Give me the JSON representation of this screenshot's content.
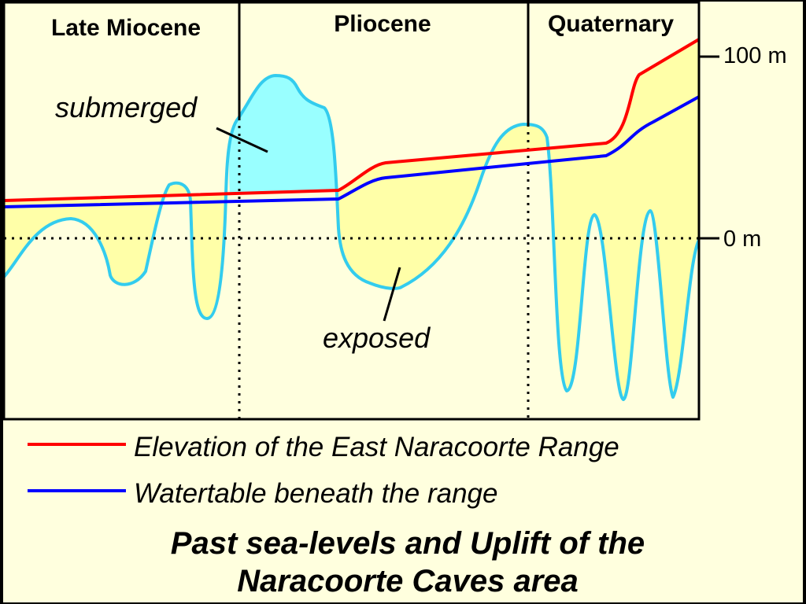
{
  "colors": {
    "background": "#ffffde",
    "exposed_fill": "#ffffa8",
    "submerged_fill": "#99ffff",
    "sea_level_curve": "#33ccee",
    "elevation_line": "#ff0000",
    "watertable_line": "#0000ff",
    "frame": "#000000"
  },
  "diagram": {
    "epochs": [
      "Late Miocene",
      "Pliocene",
      "Quaternary"
    ],
    "axis": {
      "upper_label": "100 m",
      "zero_label": "0 m"
    },
    "annotations": {
      "submerged": "submerged",
      "exposed": "exposed"
    }
  },
  "legend": [
    {
      "label": "Elevation of the East Naracoorte Range",
      "color": "#ff0000"
    },
    {
      "label": "Watertable beneath the range",
      "color": "#0000ff"
    }
  ],
  "title": {
    "line1": "Past sea-levels and Uplift of the",
    "line2": "Naracoorte Caves area"
  }
}
